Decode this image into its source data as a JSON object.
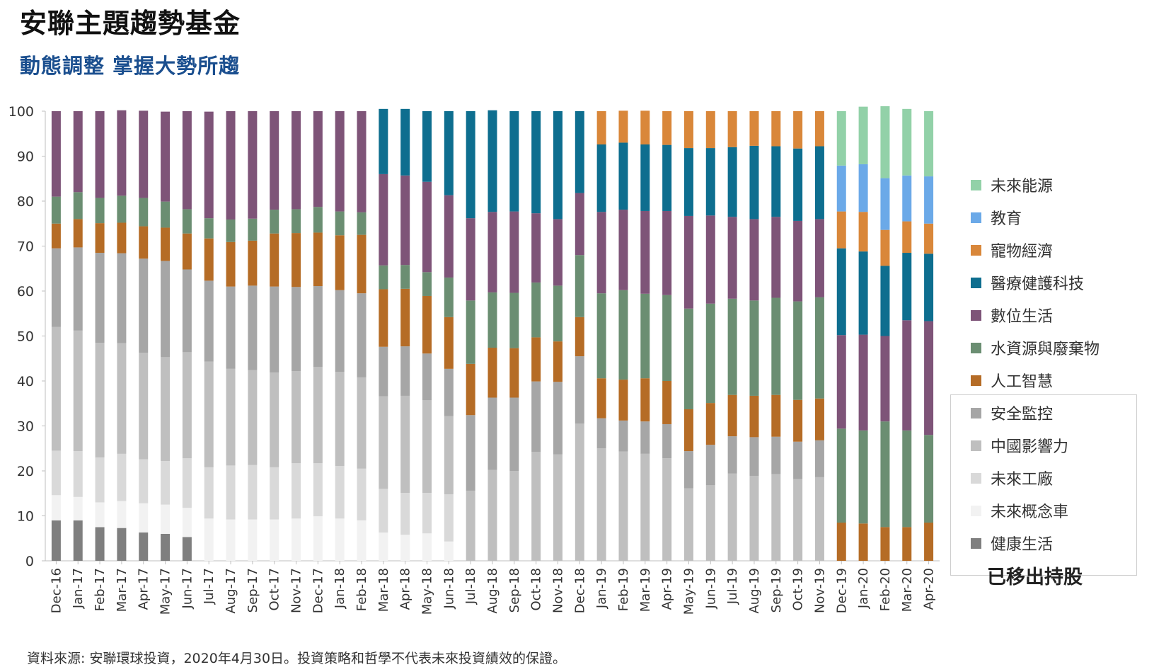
{
  "title": "安聯主題趨勢基金",
  "subtitle": "動態調整  掌握大勢所趨",
  "source": "資料來源: 安聯環球投資，2020年4月30日。投資策略和哲學不代表未來投資績效的保證。",
  "removed_label": "已移出持股",
  "chart_data": {
    "type": "bar",
    "stacked": true,
    "ylim": [
      0,
      100
    ],
    "yticks": [
      0,
      10,
      20,
      30,
      40,
      50,
      60,
      70,
      80,
      90,
      100
    ],
    "grid": false,
    "legend_position": "right",
    "categories": [
      "Dec-16",
      "Jan-17",
      "Feb-17",
      "Mar-17",
      "Apr-17",
      "May-17",
      "Jun-17",
      "Jul-17",
      "Aug-17",
      "Sep-17",
      "Oct-17",
      "Nov-17",
      "Dec-17",
      "Jan-18",
      "Feb-18",
      "Mar-18",
      "Apr-18",
      "May-18",
      "Jun-18",
      "Jul-18",
      "Aug-18",
      "Sep-18",
      "Oct-18",
      "Nov-18",
      "Dec-18",
      "Jan-19",
      "Feb-19",
      "Mar-19",
      "Apr-19",
      "May-19",
      "Jun-19",
      "Jul-19",
      "Aug-19",
      "Sep-19",
      "Oct-19",
      "Nov-19",
      "Dec-19",
      "Jan-20",
      "Feb-20",
      "Mar-20",
      "Apr-20"
    ],
    "series": [
      {
        "name": "健康生活",
        "color": "#7f7f7f",
        "values": [
          9,
          9,
          7.5,
          7.3,
          6.3,
          6,
          5.3,
          0,
          0,
          0,
          0,
          0,
          0,
          0,
          0,
          0,
          0,
          0,
          0,
          0,
          0,
          0,
          0,
          0,
          0,
          0,
          0,
          0,
          0,
          0,
          0,
          0,
          0,
          0,
          0,
          0,
          0,
          0,
          0,
          0,
          0
        ]
      },
      {
        "name": "未來概念車",
        "color": "#f2f2f2",
        "values": [
          5.6,
          5.2,
          5.5,
          6,
          6.5,
          6.5,
          6.5,
          9.4,
          9.2,
          9.2,
          9.2,
          9.4,
          9.9,
          9.4,
          9,
          6.3,
          5.8,
          6.1,
          4.3,
          0,
          0,
          0,
          0,
          0,
          0,
          0,
          0,
          0,
          0,
          0,
          0,
          0,
          0,
          0,
          0,
          0,
          0,
          0,
          0,
          0,
          0
        ]
      },
      {
        "name": "未來工廠",
        "color": "#d9d9d9",
        "values": [
          9.9,
          10.2,
          10,
          10.5,
          9.8,
          9.7,
          11,
          11.4,
          12,
          12.1,
          11.6,
          12.3,
          11.8,
          11.7,
          11.5,
          9.7,
          9.3,
          9,
          10.5,
          0,
          0,
          0,
          0,
          0,
          0,
          0,
          0,
          0,
          0,
          0,
          0,
          0,
          0,
          0,
          0,
          0,
          0,
          0,
          0,
          0,
          0
        ]
      },
      {
        "name": "中國影響力",
        "color": "#bfbfbf",
        "values": [
          27.5,
          26.8,
          25.5,
          24.6,
          23.7,
          23.1,
          23.6,
          23.5,
          21.5,
          21.1,
          21.1,
          20.5,
          21.4,
          20.9,
          20.3,
          20.6,
          21.6,
          20.6,
          17.4,
          15.6,
          20.2,
          20,
          24.2,
          23.7,
          30.5,
          25,
          24.3,
          23.8,
          22.8,
          16.1,
          16.8,
          19.4,
          18.9,
          19.3,
          18.2,
          18.6,
          0,
          0,
          0,
          0,
          0
        ]
      },
      {
        "name": "安全監控",
        "color": "#a6a6a6",
        "values": [
          17.5,
          18.5,
          20,
          20,
          20.9,
          21.4,
          18.4,
          18,
          18.3,
          18.8,
          19.1,
          18.7,
          18,
          18.2,
          18.7,
          11,
          11,
          10.4,
          10.5,
          16.8,
          16.1,
          16.3,
          15.7,
          16.1,
          15,
          6.7,
          6.9,
          7.2,
          7.6,
          8.3,
          9,
          8.3,
          8.6,
          8.3,
          8.3,
          8.2,
          0,
          0,
          0,
          0,
          0
        ]
      },
      {
        "name": "人工智慧",
        "color": "#b56c26",
        "values": [
          5.5,
          6.3,
          6.6,
          6.8,
          7.2,
          7.4,
          8,
          9.4,
          9.9,
          10,
          11.8,
          12,
          11.9,
          12.2,
          13,
          12.8,
          12.8,
          12.8,
          11.5,
          11.4,
          11.1,
          11,
          9.8,
          9,
          8.7,
          8.9,
          9.1,
          9.6,
          9.6,
          9.3,
          9.3,
          9.2,
          9.2,
          9.3,
          9.3,
          9.3,
          8.5,
          8.3,
          7.5,
          7.5,
          8.5
        ]
      },
      {
        "name": "水資源與廢棄物",
        "color": "#6b8e72",
        "values": [
          6,
          6,
          5.6,
          6,
          6.3,
          5.8,
          5.4,
          4.5,
          5,
          4.9,
          5.3,
          5.3,
          5.7,
          5.3,
          5,
          5.3,
          5.3,
          5.3,
          8.8,
          14.1,
          12.3,
          12.3,
          12.2,
          12.4,
          13.8,
          18.9,
          19.9,
          18.8,
          19.1,
          22.4,
          22.1,
          21.4,
          21.2,
          21.6,
          21.9,
          22.5,
          20.9,
          20.7,
          23.5,
          21.5,
          19.5
        ]
      },
      {
        "name": "數位生活",
        "color": "#7e5478",
        "values": [
          19,
          18,
          19.3,
          19,
          19.4,
          20,
          21.8,
          23.7,
          24.1,
          23.9,
          21.9,
          21.8,
          21.3,
          22.3,
          22.5,
          20.3,
          19.9,
          20.1,
          18.3,
          18.3,
          17.9,
          18.1,
          15.4,
          14.8,
          13.8,
          18.1,
          17.9,
          18.4,
          18.7,
          20.6,
          19.6,
          18.2,
          18.1,
          18,
          17.9,
          17.4,
          20.8,
          21.3,
          19,
          24.5,
          25.3
        ]
      },
      {
        "name": "醫療健護科技",
        "color": "#0e6e8f",
        "values": [
          0,
          0,
          0,
          0,
          0,
          0,
          0,
          0,
          0,
          0,
          0,
          0,
          0,
          0,
          0,
          14.5,
          14.8,
          15.7,
          18.7,
          23.8,
          22.6,
          22.3,
          22.7,
          24,
          18.2,
          15,
          14.9,
          14.8,
          14.7,
          15.1,
          15,
          15.5,
          16.3,
          15.7,
          16.1,
          16.2,
          19.3,
          18.5,
          15.6,
          15,
          15
        ]
      },
      {
        "name": "寵物經濟",
        "color": "#d9873a",
        "values": [
          0,
          0,
          0,
          0,
          0,
          0,
          0,
          0,
          0,
          0,
          0,
          0,
          0,
          0,
          0,
          0,
          0,
          0,
          0,
          0,
          0,
          0,
          0,
          0,
          0,
          7.4,
          7.1,
          7.5,
          7.5,
          8.2,
          8.2,
          8,
          7.7,
          7.8,
          8.3,
          7.8,
          8.2,
          8.8,
          8,
          7,
          6.7
        ]
      },
      {
        "name": "教育",
        "color": "#6ba9e8",
        "values": [
          0,
          0,
          0,
          0,
          0,
          0,
          0,
          0,
          0,
          0,
          0,
          0,
          0,
          0,
          0,
          0,
          0,
          0,
          0,
          0,
          0,
          0,
          0,
          0,
          0,
          0,
          0,
          0,
          0,
          0,
          0,
          0,
          0,
          0,
          0,
          0,
          10.2,
          10.6,
          11.5,
          10.2,
          10.5
        ]
      },
      {
        "name": "未來能源",
        "color": "#92d1a8",
        "values": [
          0,
          0,
          0,
          0,
          0,
          0,
          0,
          0,
          0,
          0,
          0,
          0,
          0,
          0,
          0,
          0,
          0,
          0,
          0,
          0,
          0,
          0,
          0,
          0,
          0,
          0,
          0,
          0,
          0,
          0,
          0,
          0,
          0,
          0,
          0,
          0,
          12.1,
          12.8,
          16,
          14.8,
          14.5
        ]
      }
    ]
  }
}
